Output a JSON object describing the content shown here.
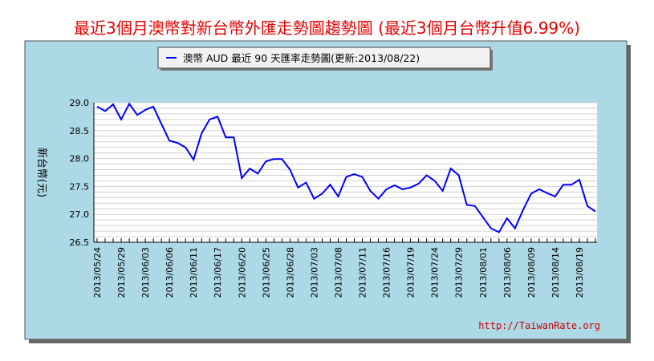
{
  "header": {
    "title": "最近3個月澳幣對新台幣外匯走勢圖趨勢圖 (最近3個月台幣升值6.99%)"
  },
  "chart_data": {
    "type": "line",
    "legend": "澳幣 AUD 最近 90 天匯率走勢圖(更新:2013/08/22)",
    "ylabel": "新台幣(元)",
    "ylim": [
      26.5,
      29.0
    ],
    "yticks": [
      "29.0",
      "28.5",
      "28.0",
      "27.5",
      "27.0",
      "26.5"
    ],
    "xticks": [
      "2013/05/24",
      "2013/05/29",
      "2013/06/03",
      "2013/06/06",
      "2013/06/11",
      "2013/06/17",
      "2013/06/20",
      "2013/06/25",
      "2013/06/28",
      "2013/07/03",
      "2013/07/08",
      "2013/07/11",
      "2013/07/16",
      "2013/07/19",
      "2013/07/24",
      "2013/07/29",
      "2013/08/01",
      "2013/08/06",
      "2013/08/09",
      "2013/08/14",
      "2013/08/19"
    ],
    "grid": true,
    "footer": "http://TaiwanRate.org",
    "colors": {
      "line": "#0000ff",
      "frame_bg": "#add8e6",
      "plot_bg": "#ffffff"
    },
    "series": [
      {
        "values": [
          28.93,
          28.85,
          28.97,
          28.7,
          28.98,
          28.78,
          28.87,
          28.93,
          28.62,
          28.32,
          28.28,
          28.2,
          27.98,
          28.45,
          28.7,
          28.75,
          28.38,
          28.38,
          27.65,
          27.82,
          27.73,
          27.95,
          27.99,
          27.99,
          27.8,
          27.48,
          27.57,
          27.28,
          27.37,
          27.53,
          27.32,
          27.67,
          27.72,
          27.67,
          27.42,
          27.28,
          27.45,
          27.52,
          27.45,
          27.48,
          27.55,
          27.7,
          27.6,
          27.42,
          27.82,
          27.7,
          27.17,
          27.15,
          26.95,
          26.75,
          26.68,
          26.93,
          26.75,
          27.08,
          27.37,
          27.45,
          27.38,
          27.32,
          27.53,
          27.53,
          27.62,
          27.15,
          27.05
        ]
      }
    ]
  }
}
